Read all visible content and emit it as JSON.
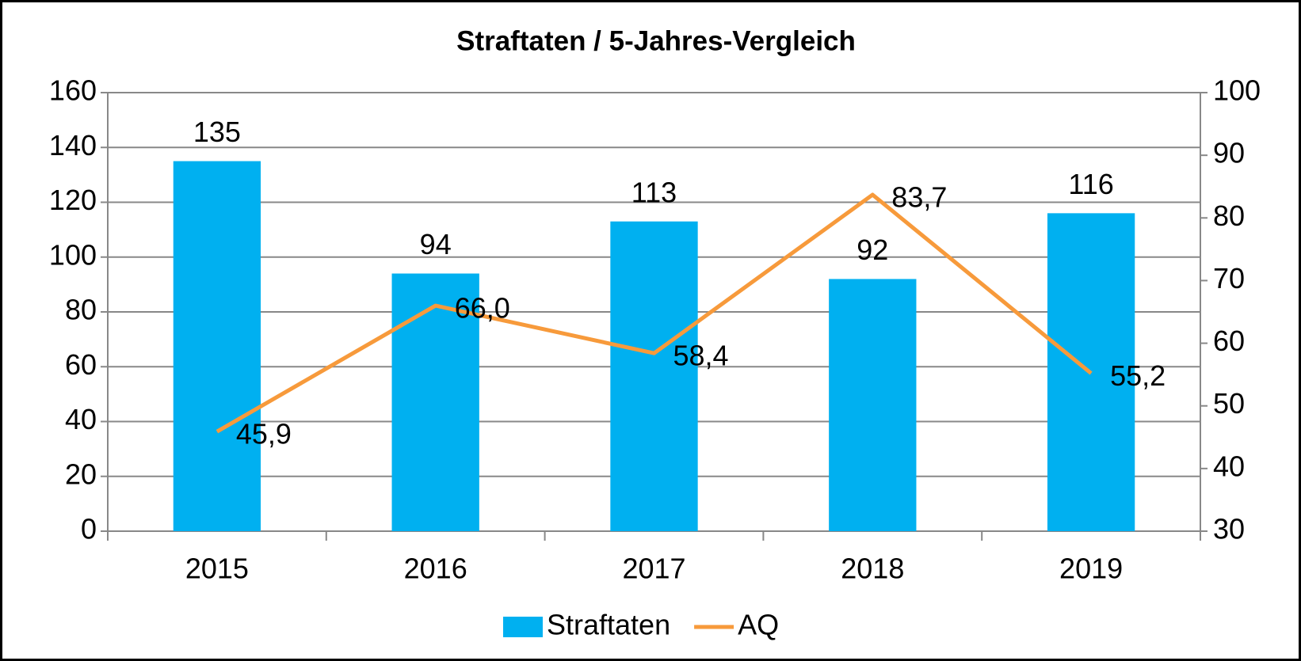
{
  "chart_data": {
    "type": "bar",
    "title": "Straftaten / 5-Jahres-Vergleich",
    "categories": [
      "2015",
      "2016",
      "2017",
      "2018",
      "2019"
    ],
    "series": [
      {
        "name": "Straftaten",
        "type": "bar",
        "color": "#00b0f0",
        "values": [
          135,
          94,
          113,
          92,
          116
        ]
      },
      {
        "name": "AQ",
        "type": "line",
        "axis": "y2",
        "color": "#f79a3b",
        "values": [
          45.9,
          66.0,
          58.4,
          83.7,
          55.2
        ],
        "value_labels": [
          "45,9",
          "66,0",
          "58,4",
          "83,7",
          "55,2"
        ]
      }
    ],
    "ylim": [
      0,
      160
    ],
    "yticks": [
      0,
      20,
      40,
      60,
      80,
      100,
      120,
      140,
      160
    ],
    "y2lim": [
      30,
      100
    ],
    "y2ticks": [
      30,
      40,
      50,
      60,
      70,
      80,
      90,
      100
    ],
    "grid": true,
    "legend": "bottom"
  }
}
